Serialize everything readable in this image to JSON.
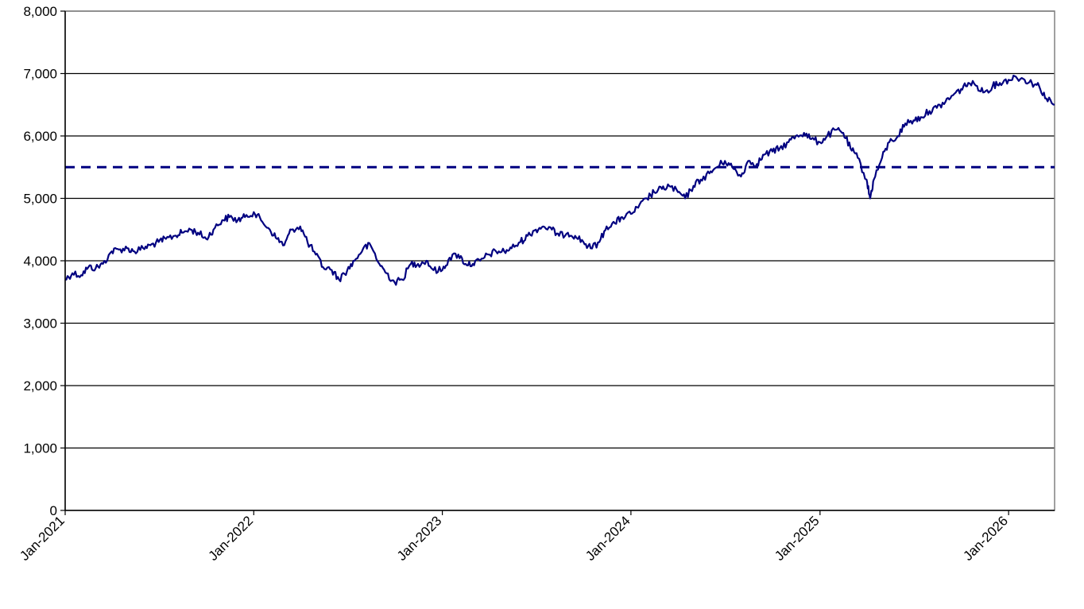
{
  "chart_data": {
    "type": "line",
    "title": "",
    "xlabel": "",
    "ylabel": "",
    "ylim": [
      0,
      8000
    ],
    "xlim": [
      "2021-01-01",
      "2026-03-31"
    ],
    "grid": true,
    "line_color": "#000080",
    "reference_line": {
      "value": 5500,
      "style": "dashed",
      "color": "#000080"
    },
    "y_ticks": [
      {
        "value": 0,
        "label": "0"
      },
      {
        "value": 1000,
        "label": "1,000"
      },
      {
        "value": 2000,
        "label": "2,000"
      },
      {
        "value": 3000,
        "label": "3,000"
      },
      {
        "value": 4000,
        "label": "4,000"
      },
      {
        "value": 5000,
        "label": "5,000"
      },
      {
        "value": 6000,
        "label": "6,000"
      },
      {
        "value": 7000,
        "label": "7,000"
      },
      {
        "value": 8000,
        "label": "8,000"
      }
    ],
    "x_ticks": [
      {
        "value": "2021-01-01",
        "label": "Jan-2021"
      },
      {
        "value": "2022-01-01",
        "label": "Jan-2022"
      },
      {
        "value": "2023-01-01",
        "label": "Jan-2023"
      },
      {
        "value": "2024-01-01",
        "label": "Jan-2024"
      },
      {
        "value": "2025-01-01",
        "label": "Jan-2025"
      },
      {
        "value": "2026-01-01",
        "label": "Jan-2026"
      }
    ],
    "series": [
      {
        "x": [
          "2021-01-01",
          "2021-01-15",
          "2021-02-01",
          "2021-02-15",
          "2021-03-01",
          "2021-03-15",
          "2021-04-01",
          "2021-04-15",
          "2021-05-01",
          "2021-05-15",
          "2021-06-01",
          "2021-06-15",
          "2021-07-01",
          "2021-07-15",
          "2021-08-01",
          "2021-08-15",
          "2021-09-01",
          "2021-09-15",
          "2021-10-01",
          "2021-10-15",
          "2021-11-01",
          "2021-11-15",
          "2021-12-01",
          "2021-12-15",
          "2022-01-01",
          "2022-01-15",
          "2022-02-01",
          "2022-02-15",
          "2022-03-01",
          "2022-03-15",
          "2022-04-01",
          "2022-04-15",
          "2022-05-01",
          "2022-05-15",
          "2022-06-01",
          "2022-06-15",
          "2022-07-01",
          "2022-07-15",
          "2022-08-01",
          "2022-08-15",
          "2022-09-01",
          "2022-09-15",
          "2022-10-01",
          "2022-10-15",
          "2022-11-01",
          "2022-11-15",
          "2022-12-01",
          "2022-12-15",
          "2023-01-01",
          "2023-01-15",
          "2023-02-01",
          "2023-02-15",
          "2023-03-01",
          "2023-03-15",
          "2023-04-01",
          "2023-04-15",
          "2023-05-01",
          "2023-05-15",
          "2023-06-01",
          "2023-06-15",
          "2023-07-01",
          "2023-07-15",
          "2023-08-01",
          "2023-08-15",
          "2023-09-01",
          "2023-09-15",
          "2023-10-01",
          "2023-10-15",
          "2023-11-01",
          "2023-11-15",
          "2023-12-01",
          "2023-12-15",
          "2024-01-01",
          "2024-01-15",
          "2024-02-01",
          "2024-02-15",
          "2024-03-01",
          "2024-03-15",
          "2024-04-01",
          "2024-04-15",
          "2024-05-01",
          "2024-05-15",
          "2024-06-01",
          "2024-06-15",
          "2024-07-01",
          "2024-07-15",
          "2024-08-01",
          "2024-08-15",
          "2024-09-01",
          "2024-09-15",
          "2024-10-01",
          "2024-10-15",
          "2024-11-01",
          "2024-11-15",
          "2024-12-01",
          "2024-12-15",
          "2025-01-01",
          "2025-01-15",
          "2025-02-01",
          "2025-02-15",
          "2025-03-01",
          "2025-03-15",
          "2025-04-01",
          "2025-04-08",
          "2025-04-15",
          "2025-05-01",
          "2025-05-15",
          "2025-06-01",
          "2025-06-15",
          "2025-07-01",
          "2025-07-15",
          "2025-08-01",
          "2025-08-15",
          "2025-09-01",
          "2025-09-15",
          "2025-10-01",
          "2025-10-15",
          "2025-11-01",
          "2025-11-15",
          "2025-12-01",
          "2025-12-15",
          "2026-01-01",
          "2026-01-15",
          "2026-02-01",
          "2026-02-15",
          "2026-03-01",
          "2026-03-15",
          "2026-03-31"
        ],
        "values": [
          3700,
          3800,
          3770,
          3900,
          3880,
          3950,
          4150,
          4180,
          4200,
          4150,
          4200,
          4250,
          4300,
          4350,
          4400,
          4450,
          4500,
          4450,
          4350,
          4500,
          4650,
          4700,
          4650,
          4700,
          4780,
          4650,
          4500,
          4350,
          4250,
          4500,
          4550,
          4300,
          4100,
          3900,
          3850,
          3700,
          3850,
          4000,
          4200,
          4250,
          3950,
          3800,
          3650,
          3700,
          3950,
          3950,
          4000,
          3850,
          3850,
          4050,
          4100,
          3950,
          3950,
          4000,
          4100,
          4150,
          4150,
          4200,
          4300,
          4400,
          4500,
          4550,
          4500,
          4400,
          4450,
          4400,
          4300,
          4200,
          4300,
          4550,
          4600,
          4700,
          4750,
          4850,
          5000,
          5100,
          5150,
          5200,
          5100,
          5000,
          5200,
          5300,
          5400,
          5500,
          5600,
          5500,
          5350,
          5600,
          5550,
          5700,
          5750,
          5800,
          5900,
          6000,
          6050,
          5950,
          5900,
          6000,
          6100,
          6050,
          5800,
          5650,
          5300,
          5000,
          5300,
          5650,
          5900,
          6000,
          6200,
          6250,
          6300,
          6400,
          6450,
          6550,
          6650,
          6750,
          6850,
          6800,
          6700,
          6800,
          6850,
          6900,
          6950,
          6900,
          6850,
          6800,
          6600,
          6500
        ]
      }
    ]
  }
}
